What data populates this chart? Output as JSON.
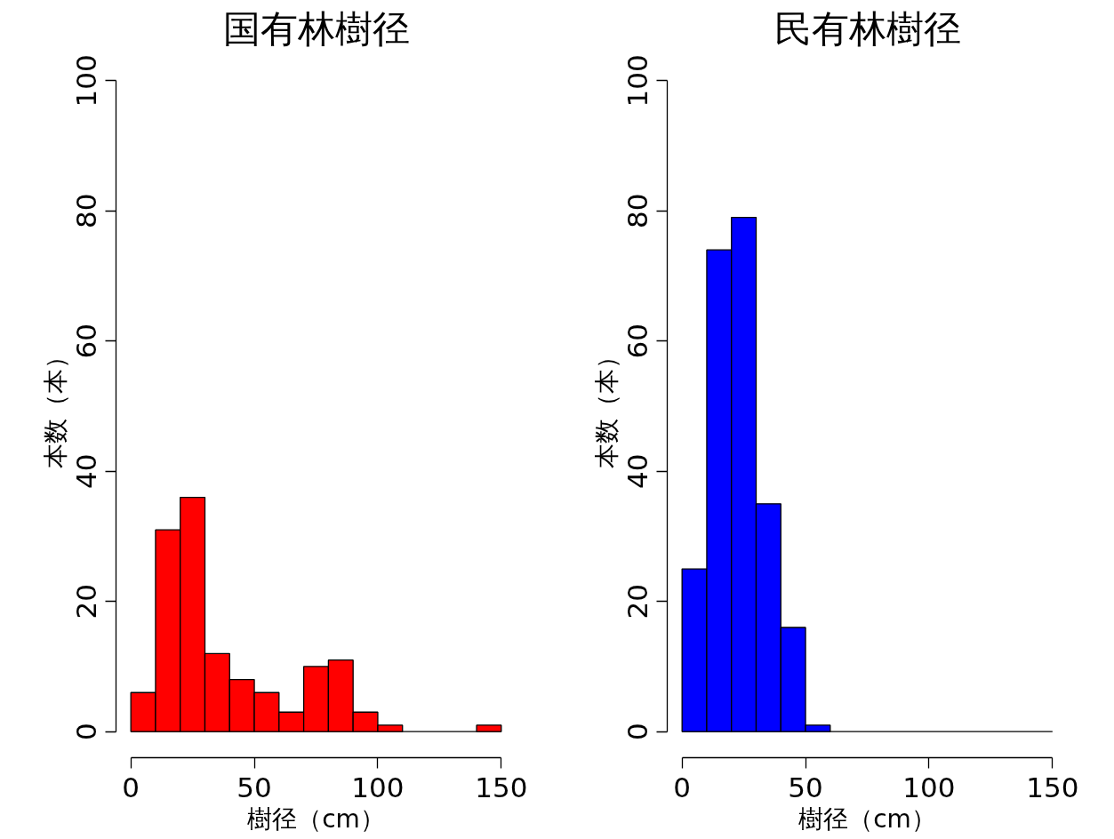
{
  "chart_data": [
    {
      "type": "histogram",
      "title": "国有林樹径",
      "xlabel": "樹径（cm）",
      "ylabel": "本数（本）",
      "color": "#ff0000",
      "bins": [
        0,
        10,
        20,
        30,
        40,
        50,
        60,
        70,
        80,
        90,
        100,
        110,
        120,
        130,
        140,
        150
      ],
      "values": [
        6,
        31,
        36,
        12,
        8,
        6,
        3,
        10,
        11,
        3,
        1,
        0,
        0,
        0,
        1
      ],
      "xlim": [
        0,
        150
      ],
      "ylim": [
        0,
        100
      ],
      "xticks": [
        0,
        50,
        100,
        150
      ],
      "yticks": [
        0,
        20,
        40,
        60,
        80,
        100
      ],
      "grid": false
    },
    {
      "type": "histogram",
      "title": "民有林樹径",
      "xlabel": "樹径（cm）",
      "ylabel": "本数（本）",
      "color": "#0000ff",
      "bins": [
        0,
        10,
        20,
        30,
        40,
        50,
        60,
        70,
        80,
        90,
        100,
        110,
        120,
        130,
        140,
        150
      ],
      "values": [
        25,
        74,
        79,
        35,
        16,
        1,
        0,
        0,
        0,
        0,
        0,
        0,
        0,
        0,
        0
      ],
      "xlim": [
        0,
        150
      ],
      "ylim": [
        0,
        100
      ],
      "xticks": [
        0,
        50,
        100,
        150
      ],
      "yticks": [
        0,
        20,
        40,
        60,
        80,
        100
      ],
      "grid": false
    }
  ]
}
